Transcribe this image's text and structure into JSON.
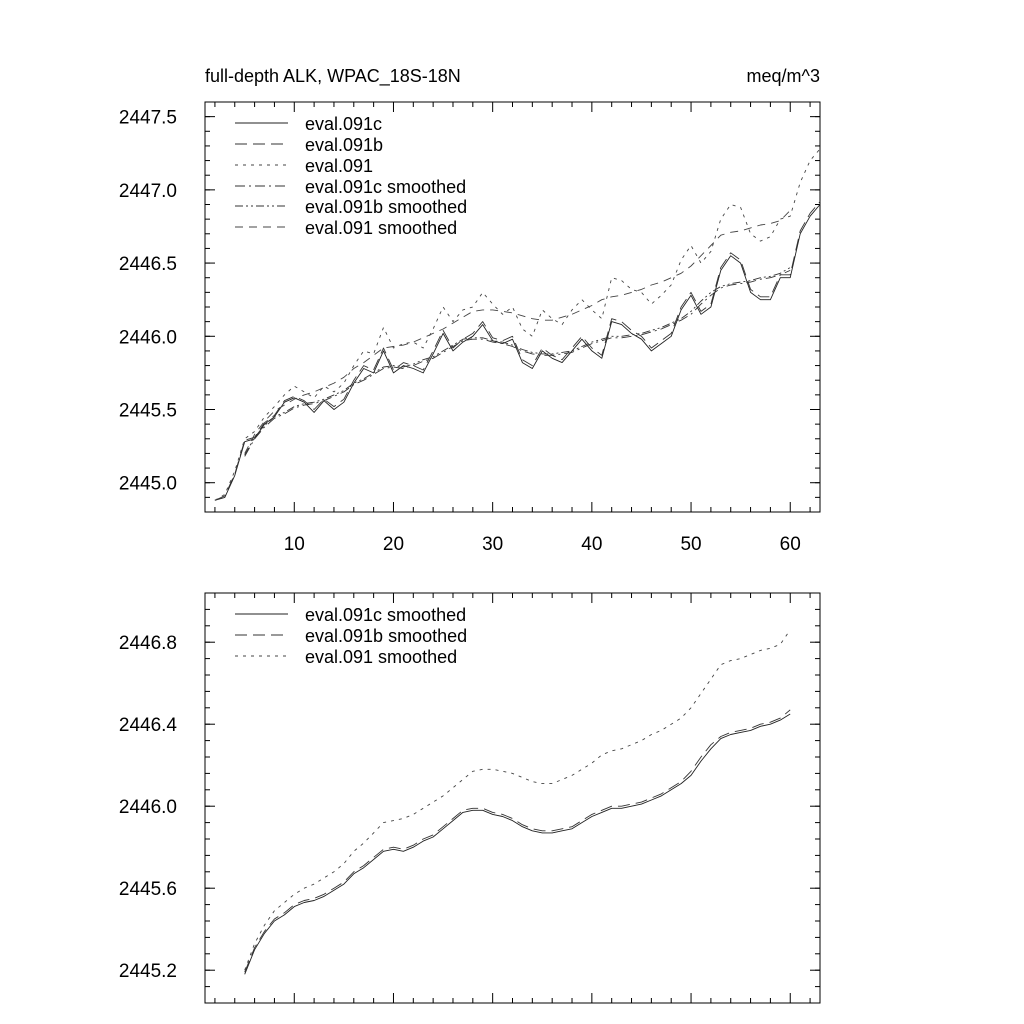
{
  "chart_data": [
    {
      "type": "line",
      "title": "full-depth ALK, WPAC_18S-18N",
      "units_label": "meq/m^3",
      "xlabel": "",
      "ylabel": "",
      "xlim": [
        1,
        63
      ],
      "ylim": [
        2444.8,
        2447.6
      ],
      "xticks": [
        10,
        20,
        30,
        40,
        50,
        60
      ],
      "xtick_labels": [
        "10",
        "20",
        "30",
        "40",
        "50",
        "60"
      ],
      "yticks": [
        2445.0,
        2445.5,
        2446.0,
        2446.5,
        2447.0,
        2447.5
      ],
      "ytick_labels": [
        "2445.0",
        "2445.5",
        "2446.0",
        "2446.5",
        "2447.0",
        "2447.5"
      ],
      "legend_position": "top-left",
      "x": [
        2,
        3,
        4,
        5,
        6,
        7,
        8,
        9,
        10,
        11,
        12,
        13,
        14,
        15,
        16,
        17,
        18,
        19,
        20,
        21,
        22,
        23,
        24,
        25,
        26,
        27,
        28,
        29,
        30,
        31,
        32,
        33,
        34,
        35,
        36,
        37,
        38,
        39,
        40,
        41,
        42,
        43,
        44,
        45,
        46,
        47,
        48,
        49,
        50,
        51,
        52,
        53,
        54,
        55,
        56,
        57,
        58,
        59,
        60,
        61,
        62,
        63
      ],
      "series": [
        {
          "name": "eval.091c",
          "dash": "solid",
          "color": "#000000",
          "values": [
            2444.88,
            2444.9,
            2445.05,
            2445.28,
            2445.3,
            2445.4,
            2445.45,
            2445.55,
            2445.58,
            2445.55,
            2445.48,
            2445.56,
            2445.5,
            2445.55,
            2445.68,
            2445.78,
            2445.75,
            2445.9,
            2445.75,
            2445.8,
            2445.78,
            2445.75,
            2445.88,
            2446.02,
            2445.9,
            2445.96,
            2446.0,
            2446.08,
            2445.97,
            2445.95,
            2445.98,
            2445.82,
            2445.78,
            2445.9,
            2445.85,
            2445.82,
            2445.9,
            2445.98,
            2445.9,
            2445.85,
            2446.1,
            2446.08,
            2446.02,
            2445.98,
            2445.9,
            2445.95,
            2446.0,
            2446.18,
            2446.28,
            2446.15,
            2446.2,
            2446.45,
            2446.55,
            2446.5,
            2446.3,
            2446.25,
            2446.25,
            2446.4,
            2446.4,
            2446.7,
            2446.82,
            2446.9
          ]
        },
        {
          "name": "eval.091b",
          "dash": "long-dash",
          "color": "#000000",
          "values": [
            2444.88,
            2444.91,
            2445.06,
            2445.29,
            2445.31,
            2445.41,
            2445.46,
            2445.56,
            2445.59,
            2445.56,
            2445.5,
            2445.57,
            2445.52,
            2445.57,
            2445.7,
            2445.8,
            2445.77,
            2445.92,
            2445.77,
            2445.82,
            2445.8,
            2445.77,
            2445.9,
            2446.04,
            2445.92,
            2445.98,
            2446.02,
            2446.1,
            2445.99,
            2445.97,
            2446.0,
            2445.84,
            2445.8,
            2445.92,
            2445.87,
            2445.84,
            2445.92,
            2446.0,
            2445.92,
            2445.87,
            2446.12,
            2446.1,
            2446.04,
            2446.0,
            2445.92,
            2445.97,
            2446.02,
            2446.2,
            2446.3,
            2446.17,
            2446.22,
            2446.47,
            2446.57,
            2446.52,
            2446.32,
            2446.27,
            2446.27,
            2446.42,
            2446.42,
            2446.72,
            2446.84,
            2446.92
          ]
        },
        {
          "name": "eval.091",
          "dash": "short-dash",
          "color": "#000000",
          "values": [
            2444.88,
            2444.92,
            2445.08,
            2445.3,
            2445.35,
            2445.45,
            2445.52,
            2445.6,
            2445.66,
            2445.62,
            2445.58,
            2445.66,
            2445.62,
            2445.68,
            2445.8,
            2445.9,
            2445.88,
            2446.06,
            2445.92,
            2445.95,
            2445.96,
            2445.92,
            2446.05,
            2446.2,
            2446.1,
            2446.18,
            2446.2,
            2446.3,
            2446.22,
            2446.15,
            2446.2,
            2446.05,
            2446.0,
            2446.18,
            2446.12,
            2446.08,
            2446.18,
            2446.25,
            2446.18,
            2446.12,
            2446.4,
            2446.38,
            2446.32,
            2446.3,
            2446.22,
            2446.28,
            2446.35,
            2446.52,
            2446.62,
            2446.5,
            2446.58,
            2446.8,
            2446.9,
            2446.88,
            2446.7,
            2446.65,
            2446.68,
            2446.8,
            2446.82,
            2447.05,
            2447.2,
            2447.28
          ]
        },
        {
          "name": "eval.091c smoothed",
          "dash": "dash-dot",
          "color": "#000000",
          "values": [
            null,
            null,
            null,
            2445.18,
            2445.3,
            2445.38,
            2445.44,
            2445.47,
            2445.51,
            2445.53,
            2445.54,
            2445.56,
            2445.59,
            2445.62,
            2445.67,
            2445.7,
            2445.74,
            2445.78,
            2445.79,
            2445.78,
            2445.8,
            2445.83,
            2445.85,
            2445.89,
            2445.93,
            2445.97,
            2445.98,
            2445.98,
            2445.96,
            2445.95,
            2445.93,
            2445.9,
            2445.88,
            2445.87,
            2445.87,
            2445.88,
            2445.89,
            2445.92,
            2445.95,
            2445.97,
            2445.99,
            2445.99,
            2446.0,
            2446.01,
            2446.03,
            2446.05,
            2446.08,
            2446.11,
            2446.15,
            2446.22,
            2446.28,
            2446.33,
            2446.35,
            2446.36,
            2446.37,
            2446.39,
            2446.4,
            2446.42,
            2446.45,
            null,
            null,
            null
          ]
        },
        {
          "name": "eval.091b smoothed",
          "dash": "dash-dot-dot",
          "color": "#000000",
          "values": [
            null,
            null,
            null,
            2445.19,
            2445.31,
            2445.39,
            2445.45,
            2445.48,
            2445.52,
            2445.54,
            2445.55,
            2445.57,
            2445.6,
            2445.63,
            2445.68,
            2445.71,
            2445.75,
            2445.79,
            2445.8,
            2445.79,
            2445.81,
            2445.84,
            2445.86,
            2445.9,
            2445.94,
            2445.98,
            2445.99,
            2445.99,
            2445.97,
            2445.96,
            2445.94,
            2445.91,
            2445.89,
            2445.88,
            2445.88,
            2445.89,
            2445.9,
            2445.93,
            2445.96,
            2445.98,
            2446.0,
            2446.0,
            2446.01,
            2446.02,
            2446.04,
            2446.06,
            2446.09,
            2446.12,
            2446.17,
            2446.24,
            2446.3,
            2446.34,
            2446.36,
            2446.37,
            2446.38,
            2446.4,
            2446.41,
            2446.43,
            2446.47,
            null,
            null,
            null
          ]
        },
        {
          "name": "eval.091 smoothed",
          "dash": "medium-dash",
          "color": "#000000",
          "values": [
            null,
            null,
            null,
            2445.2,
            2445.33,
            2445.42,
            2445.49,
            2445.53,
            2445.57,
            2445.6,
            2445.62,
            2445.65,
            2445.68,
            2445.72,
            2445.78,
            2445.82,
            2445.87,
            2445.92,
            2445.93,
            2445.94,
            2445.96,
            2445.99,
            2446.02,
            2446.05,
            2446.09,
            2446.13,
            2446.17,
            2446.18,
            2446.18,
            2446.17,
            2446.16,
            2446.14,
            2446.12,
            2446.11,
            2446.11,
            2446.13,
            2446.15,
            2446.18,
            2446.21,
            2446.25,
            2446.27,
            2446.28,
            2446.3,
            2446.32,
            2446.35,
            2446.37,
            2446.4,
            2446.43,
            2446.48,
            2446.55,
            2446.62,
            2446.69,
            2446.71,
            2446.72,
            2446.74,
            2446.76,
            2446.77,
            2446.79,
            2446.86,
            null,
            null,
            null
          ]
        }
      ]
    },
    {
      "type": "line",
      "title": "",
      "xlabel": "",
      "ylabel": "",
      "xlim": [
        1,
        63
      ],
      "ylim": [
        2445.04,
        2447.04
      ],
      "xticks": [
        10,
        20,
        30,
        40,
        50,
        60
      ],
      "yticks": [
        2445.2,
        2445.6,
        2446.0,
        2446.4,
        2446.8
      ],
      "ytick_labels": [
        "2445.2",
        "2445.6",
        "2446.0",
        "2446.4",
        "2446.8"
      ],
      "legend_position": "top-left",
      "x": [
        5,
        6,
        7,
        8,
        9,
        10,
        11,
        12,
        13,
        14,
        15,
        16,
        17,
        18,
        19,
        20,
        21,
        22,
        23,
        24,
        25,
        26,
        27,
        28,
        29,
        30,
        31,
        32,
        33,
        34,
        35,
        36,
        37,
        38,
        39,
        40,
        41,
        42,
        43,
        44,
        45,
        46,
        47,
        48,
        49,
        50,
        51,
        52,
        53,
        54,
        55,
        56,
        57,
        58,
        59,
        60
      ],
      "series": [
        {
          "name": "eval.091c smoothed",
          "dash": "solid",
          "color": "#000000",
          "values": [
            2445.18,
            2445.3,
            2445.38,
            2445.44,
            2445.47,
            2445.51,
            2445.53,
            2445.54,
            2445.56,
            2445.59,
            2445.62,
            2445.67,
            2445.7,
            2445.74,
            2445.78,
            2445.79,
            2445.78,
            2445.8,
            2445.83,
            2445.85,
            2445.89,
            2445.93,
            2445.97,
            2445.98,
            2445.98,
            2445.96,
            2445.95,
            2445.93,
            2445.9,
            2445.88,
            2445.87,
            2445.87,
            2445.88,
            2445.89,
            2445.92,
            2445.95,
            2445.97,
            2445.99,
            2445.99,
            2446.0,
            2446.01,
            2446.03,
            2446.05,
            2446.08,
            2446.11,
            2446.15,
            2446.22,
            2446.28,
            2446.33,
            2446.35,
            2446.36,
            2446.37,
            2446.39,
            2446.4,
            2446.42,
            2446.45
          ]
        },
        {
          "name": "eval.091b smoothed",
          "dash": "long-dash",
          "color": "#000000",
          "values": [
            2445.19,
            2445.31,
            2445.39,
            2445.45,
            2445.48,
            2445.52,
            2445.54,
            2445.55,
            2445.57,
            2445.6,
            2445.63,
            2445.68,
            2445.71,
            2445.75,
            2445.79,
            2445.8,
            2445.79,
            2445.81,
            2445.84,
            2445.86,
            2445.9,
            2445.94,
            2445.98,
            2445.99,
            2445.99,
            2445.97,
            2445.96,
            2445.94,
            2445.91,
            2445.89,
            2445.88,
            2445.88,
            2445.89,
            2445.9,
            2445.93,
            2445.96,
            2445.98,
            2446.0,
            2446.0,
            2446.01,
            2446.02,
            2446.04,
            2446.06,
            2446.09,
            2446.12,
            2446.17,
            2446.24,
            2446.3,
            2446.34,
            2446.36,
            2446.37,
            2446.38,
            2446.4,
            2446.41,
            2446.43,
            2446.47
          ]
        },
        {
          "name": "eval.091 smoothed",
          "dash": "short-dash",
          "color": "#000000",
          "values": [
            2445.2,
            2445.33,
            2445.42,
            2445.49,
            2445.53,
            2445.57,
            2445.6,
            2445.62,
            2445.65,
            2445.68,
            2445.72,
            2445.78,
            2445.82,
            2445.87,
            2445.92,
            2445.93,
            2445.94,
            2445.96,
            2445.99,
            2446.02,
            2446.05,
            2446.09,
            2446.13,
            2446.17,
            2446.18,
            2446.18,
            2446.17,
            2446.16,
            2446.14,
            2446.12,
            2446.11,
            2446.11,
            2446.13,
            2446.15,
            2446.18,
            2446.21,
            2446.25,
            2446.27,
            2446.28,
            2446.3,
            2446.32,
            2446.35,
            2446.37,
            2446.4,
            2446.43,
            2446.48,
            2446.55,
            2446.62,
            2446.69,
            2446.71,
            2446.72,
            2446.74,
            2446.76,
            2446.77,
            2446.79,
            2446.86
          ]
        }
      ]
    }
  ]
}
